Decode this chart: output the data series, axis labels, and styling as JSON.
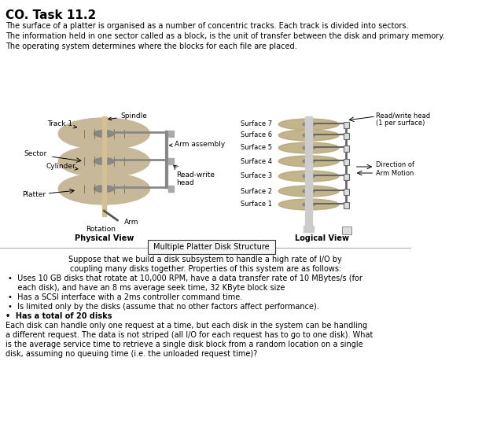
{
  "title": "CO. Task 11.2",
  "intro_text": "The surface of a platter is organised as a number of concentric tracks. Each track is divided into sectors.\nThe information held in one sector called as a block, is the unit of transfer between the disk and primary memory.\nThe operating system determines where the blocks for each file are placed.",
  "physical_labels": {
    "track1": "Track 1",
    "spindle": "Spindle",
    "arm_assembly": "Arm assembly",
    "sector": "Sector",
    "cylinder": "Cylinder",
    "read_write_head": "Read-write\nhead",
    "platter": "Platter",
    "arm": "Arm",
    "rotation": "Rotation",
    "physical_view": "Physical View"
  },
  "logical_labels": {
    "surfaces": [
      "Surface 7",
      "Surface 6",
      "Surface 5",
      "Surface 4",
      "Surface 3",
      "Surface 2",
      "Surface 1"
    ],
    "read_write_head": "Read/write head\n(1 per surface)",
    "direction": "Direction of\nArm Motion",
    "logical_view": "Logical View"
  },
  "center_label": "Multiple Platter Disk Structure",
  "body_text": [
    "Suppose that we build a disk subsystem to handle a high rate of I/O by",
    "coupling many disks together. Properties of this system are as follows:",
    "•  Uses 10 GB disks that rotate at 10,000 RPM, have a data transfer rate of 10 MBytes/s (for",
    "    each disk), and have an 8 ms average seek time, 32 KByte block size",
    "•  Has a SCSI interface with a 2ms controller command time.",
    "•  Is limited only by the disks (assume that no other factors affect performance).",
    "•  Has a total of 20 disks",
    "Each disk can handle only one request at a time, but each disk in the system can be handling",
    "a different request. The data is not striped (all I/O for each request has to go to one disk). What",
    "is the average service time to retrieve a single disk block from a random location on a single",
    "disk, assuming no queuing time (i.e. the unloaded request time)?"
  ],
  "bg_color": "#ffffff",
  "text_color": "#000000",
  "diagram_bg": "#f0f0f0"
}
